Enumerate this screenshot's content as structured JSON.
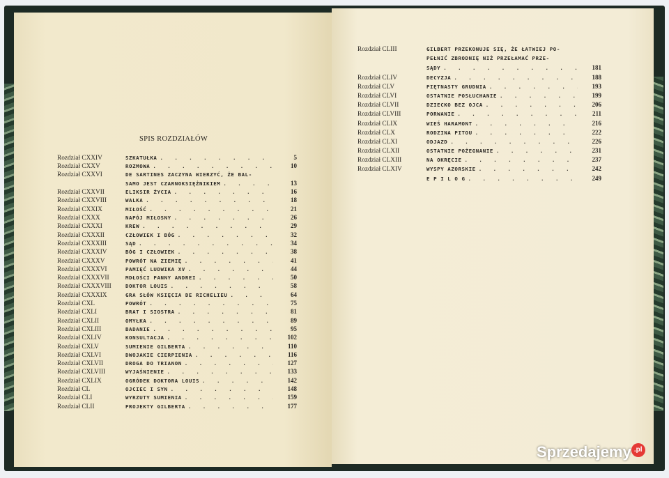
{
  "heading": "SPIS ROZDZIAŁÓW",
  "left_entries": [
    {
      "label": "Rozdział CXXIV",
      "title": [
        "SZKATUŁKA"
      ],
      "page": "5"
    },
    {
      "label": "Rozdział CXXV",
      "title": [
        "ROZMOWA"
      ],
      "page": "10"
    },
    {
      "label": "Rozdział CXXVI",
      "title": [
        "DE SARTINES ZACZYNA WIERZYĆ, ŻE BAL-",
        "SAMO JEST CZARNOKSIĘŻNIKIEM"
      ],
      "page": "13"
    },
    {
      "label": "Rozdział CXXVII",
      "title": [
        "ELIKSIR ŻYCIA"
      ],
      "page": "16"
    },
    {
      "label": "Rozdział CXXVIII",
      "title": [
        "WALKA"
      ],
      "page": "18"
    },
    {
      "label": "Rozdział CXXIX",
      "title": [
        "MIŁOŚĆ"
      ],
      "page": "21"
    },
    {
      "label": "Rozdział CXXX",
      "title": [
        "NAPÓJ MIŁOSNY"
      ],
      "page": "26"
    },
    {
      "label": "Rozdział CXXXI",
      "title": [
        "KREW"
      ],
      "page": "29"
    },
    {
      "label": "Rozdział CXXXII",
      "title": [
        "CZŁOWIEK I BÓG"
      ],
      "page": "32"
    },
    {
      "label": "Rozdział CXXXIII",
      "title": [
        "SĄD"
      ],
      "page": "34"
    },
    {
      "label": "Rozdział CXXXIV",
      "title": [
        "BÓG I CZŁOWIEK"
      ],
      "page": "38"
    },
    {
      "label": "Rozdział CXXXV",
      "title": [
        "POWRÓT NA ZIEMIĘ"
      ],
      "page": "41"
    },
    {
      "label": "Rozdział CXXXVI",
      "title": [
        "PAMIĘĆ LUDWIKA XV"
      ],
      "page": "44"
    },
    {
      "label": "Rozdział CXXXVII",
      "title": [
        "MDŁOŚCI PANNY ANDREI"
      ],
      "page": "50"
    },
    {
      "label": "Rozdział CXXXVIII",
      "title": [
        "DOKTOR LOUIS"
      ],
      "page": "58"
    },
    {
      "label": "Rozdział CXXXIX",
      "title": [
        "GRA SŁÓW KSIĘCIA DE RICHELIEU"
      ],
      "page": "64"
    },
    {
      "label": "Rozdział CXL",
      "title": [
        "POWRÓT"
      ],
      "page": "75"
    },
    {
      "label": "Rozdział CXLI",
      "title": [
        "BRAT I SIOSTRA"
      ],
      "page": "81"
    },
    {
      "label": "Rozdział CXLII",
      "title": [
        "OMYŁKA"
      ],
      "page": "89"
    },
    {
      "label": "Rozdział CXLIII",
      "title": [
        "BADANIE"
      ],
      "page": "95"
    },
    {
      "label": "Rozdział CXLIV",
      "title": [
        "KONSULTACJA"
      ],
      "page": "102"
    },
    {
      "label": "Rozdział CXLV",
      "title": [
        "SUMIENIE GILBERTA"
      ],
      "page": "110"
    },
    {
      "label": "Rozdział CXLVI",
      "title": [
        "DWOJAKIE CIERPIENIA"
      ],
      "page": "116"
    },
    {
      "label": "Rozdział CXLVII",
      "title": [
        "DROGA DO TRIANON"
      ],
      "page": "127"
    },
    {
      "label": "Rozdział CXLVIII",
      "title": [
        "WYJAŚNIENIE"
      ],
      "page": "133"
    },
    {
      "label": "Rozdział CXLIX",
      "title": [
        "OGRÓDEK DOKTORA LOUIS"
      ],
      "page": "142"
    },
    {
      "label": "Rozdział CL",
      "title": [
        "OJCIEC I SYN"
      ],
      "page": "148"
    },
    {
      "label": "Rozdział CLI",
      "title": [
        "WYRZUTY SUMIENIA"
      ],
      "page": "159"
    },
    {
      "label": "Rozdział CLII",
      "title": [
        "PROJEKTY GILBERTA"
      ],
      "page": "177"
    }
  ],
  "right_entries": [
    {
      "label": "Rozdział CLIII",
      "title": [
        "GILBERT PRZEKONUJE SIĘ, ŻE ŁATWIEJ PO-",
        "PEŁNIĆ ZBRODNIĘ NIŻ PRZEŁAMAĆ PRZE-",
        "SĄDY"
      ],
      "page": "181"
    },
    {
      "label": "Rozdział CLIV",
      "title": [
        "DECYZJA"
      ],
      "page": "188"
    },
    {
      "label": "Rozdział CLV",
      "title": [
        "PIĘTNASTY GRUDNIA"
      ],
      "page": "193"
    },
    {
      "label": "Rozdział CLVI",
      "title": [
        "OSTATNIE POSŁUCHANIE"
      ],
      "page": "199"
    },
    {
      "label": "Rozdział CLVII",
      "title": [
        "DZIECKO BEZ OJCA"
      ],
      "page": "206"
    },
    {
      "label": "Rozdział CLVIII",
      "title": [
        "PORWANIE"
      ],
      "page": "211"
    },
    {
      "label": "Rozdział CLIX",
      "title": [
        "WIEŚ HARAMONT"
      ],
      "page": "216"
    },
    {
      "label": "Rozdział CLX",
      "title": [
        "RODZINA PITOU"
      ],
      "page": "222"
    },
    {
      "label": "Rozdział CLXI",
      "title": [
        "ODJAZD"
      ],
      "page": "226"
    },
    {
      "label": "Rozdział CLXII",
      "title": [
        "OSTATNIE POŻEGNANIE"
      ],
      "page": "231"
    },
    {
      "label": "Rozdział CLXIII",
      "title": [
        "NA OKRĘCIE"
      ],
      "page": "237"
    },
    {
      "label": "Rozdział CLXIV",
      "title": [
        "WYSPY AZORSKIE"
      ],
      "page": "242"
    },
    {
      "label": "",
      "title": [
        "E P I L O G"
      ],
      "page": "249"
    }
  ],
  "watermark": {
    "text": "Sprzedajemy",
    "badge": ".pl"
  }
}
